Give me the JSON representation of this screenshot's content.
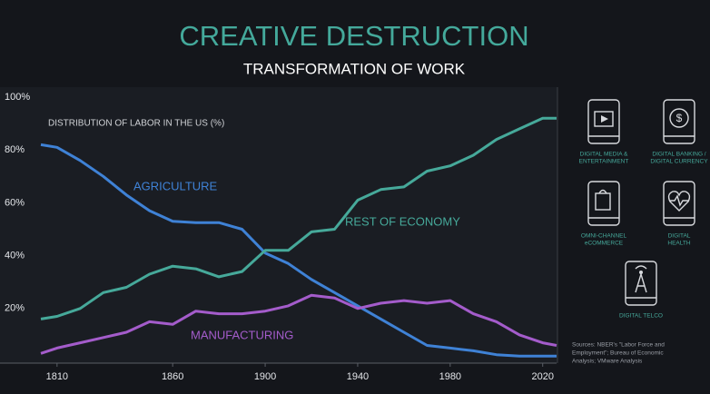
{
  "chart_data": {
    "type": "line",
    "title": "CREATIVE DESTRUCTION",
    "subtitle": "TRANSFORMATION OF WORK",
    "annotation": "DISTRIBUTION OF LABOR IN THE US (%)",
    "x": [
      1803,
      1810,
      1820,
      1830,
      1840,
      1850,
      1860,
      1870,
      1880,
      1890,
      1900,
      1910,
      1920,
      1930,
      1940,
      1950,
      1960,
      1970,
      1980,
      1990,
      2000,
      2010,
      2020,
      2026
    ],
    "series": [
      {
        "name": "AGRICULTURE",
        "color": "#3f82d6",
        "values": [
          82,
          81,
          76,
          70,
          63,
          57,
          53,
          52.5,
          52.5,
          50,
          41,
          37,
          31,
          26,
          21,
          16,
          11,
          6,
          5,
          4,
          2.5,
          2,
          2,
          2
        ]
      },
      {
        "name": "REST OF ECONOMY",
        "color": "#46a99a",
        "values": [
          16,
          17,
          20,
          26,
          28,
          33,
          36,
          35,
          32,
          34,
          42,
          42,
          49,
          50,
          61,
          65,
          66,
          72,
          74,
          78,
          84,
          88,
          92,
          92
        ]
      },
      {
        "name": "MANUFACTURING",
        "color": "#a45ccb",
        "values": [
          3,
          5,
          7,
          9,
          11,
          15,
          14,
          19,
          18,
          18,
          19,
          21,
          25,
          24,
          20,
          22,
          23,
          22,
          23,
          18,
          15,
          10,
          7,
          6
        ]
      }
    ],
    "xlim": [
      1803,
      2026
    ],
    "xticks": [
      1810,
      1860,
      1900,
      1940,
      1980,
      2020
    ],
    "ylim": [
      0,
      100
    ],
    "yticks": [
      {
        "value": 20,
        "label": "20%"
      },
      {
        "value": 40,
        "label": "40%"
      },
      {
        "value": 60,
        "label": "60%"
      },
      {
        "value": 80,
        "label": "80%"
      },
      {
        "value": 100,
        "label": "100%"
      }
    ]
  },
  "panel": {
    "items": [
      {
        "label": [
          "DIGITAL MEDIA &",
          "ENTERTAINMENT"
        ]
      },
      {
        "label": [
          "DIGITAL BANKING /",
          "DIGITAL CURRENCY"
        ]
      },
      {
        "label": [
          "OMNI-CHANNEL",
          "eCOMMERCE"
        ]
      },
      {
        "label": [
          "DIGITAL",
          "HEALTH"
        ]
      },
      {
        "label": [
          "DIGITAL TELCO"
        ]
      }
    ],
    "sources": [
      "Sources: NBER's \"Labor Force and",
      "Employment\"; Bureau of Economic",
      "Analysis; VMware Analysis"
    ]
  }
}
